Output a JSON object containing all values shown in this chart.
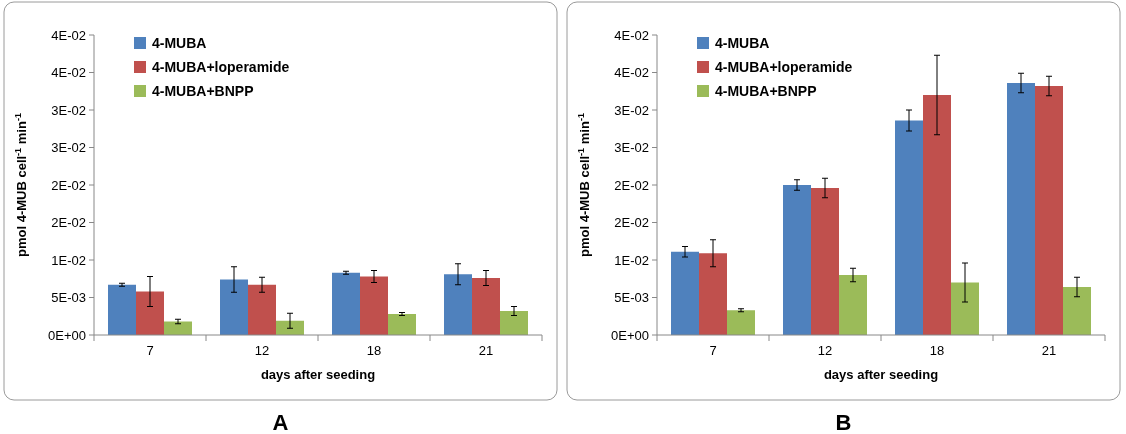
{
  "chart_data": [
    {
      "type": "bar",
      "title": "A",
      "xlabel": "days after seeding",
      "ylabel": "pmol 4-MUB cell$^{-1}$ min$^{-1}$",
      "categories": [
        "7",
        "12",
        "18",
        "21"
      ],
      "legend": "top left",
      "ylim": [
        0,
        0.04
      ],
      "yticks": [
        {
          "value": 0,
          "label": "0E+00"
        },
        {
          "value": 0.005,
          "label": "5E-03"
        },
        {
          "value": 0.01,
          "label": "1E-02"
        },
        {
          "value": 0.015,
          "label": "2E-02"
        },
        {
          "value": 0.02,
          "label": "2E-02"
        },
        {
          "value": 0.025,
          "label": "3E-02"
        },
        {
          "value": 0.03,
          "label": "3E-02"
        },
        {
          "value": 0.035,
          "label": "4E-02"
        },
        {
          "value": 0.04,
          "label": "4E-02"
        }
      ],
      "series": [
        {
          "name": "4-MUBA",
          "color": "#4f81bd",
          "values": [
            0.0067,
            0.0074,
            0.0083,
            0.0081
          ],
          "errors": [
            0.0002,
            0.0017,
            0.0002,
            0.0014
          ]
        },
        {
          "name": "4-MUBA+loperamide",
          "color": "#c0504d",
          "values": [
            0.0058,
            0.0067,
            0.0078,
            0.0076
          ],
          "errors": [
            0.002,
            0.001,
            0.0008,
            0.001
          ]
        },
        {
          "name": "4-MUBA+BNPP",
          "color": "#9bbb59",
          "values": [
            0.0018,
            0.0019,
            0.0028,
            0.0032
          ],
          "errors": [
            0.0003,
            0.001,
            0.0002,
            0.0006
          ]
        }
      ]
    },
    {
      "type": "bar",
      "title": "B",
      "xlabel": "days after seeding",
      "ylabel": "pmol 4-MUB cell$^{-1}$ min$^{-1}$",
      "categories": [
        "7",
        "12",
        "18",
        "21"
      ],
      "legend": "top left",
      "ylim": [
        0,
        0.04
      ],
      "yticks": [
        {
          "value": 0,
          "label": "0E+00"
        },
        {
          "value": 0.005,
          "label": "5E-03"
        },
        {
          "value": 0.01,
          "label": "1E-02"
        },
        {
          "value": 0.015,
          "label": "2E-02"
        },
        {
          "value": 0.02,
          "label": "2E-02"
        },
        {
          "value": 0.025,
          "label": "3E-02"
        },
        {
          "value": 0.03,
          "label": "3E-02"
        },
        {
          "value": 0.035,
          "label": "4E-02"
        },
        {
          "value": 0.04,
          "label": "4E-02"
        }
      ],
      "series": [
        {
          "name": "4-MUBA",
          "color": "#4f81bd",
          "values": [
            0.0111,
            0.02,
            0.0286,
            0.0336
          ],
          "errors": [
            0.0007,
            0.0007,
            0.0014,
            0.0013
          ]
        },
        {
          "name": "4-MUBA+loperamide",
          "color": "#c0504d",
          "values": [
            0.0109,
            0.0196,
            0.032,
            0.0332
          ],
          "errors": [
            0.0018,
            0.0013,
            0.0053,
            0.0013
          ]
        },
        {
          "name": "4-MUBA+BNPP",
          "color": "#9bbb59",
          "values": [
            0.0033,
            0.008,
            0.007,
            0.0064
          ],
          "errors": [
            0.0002,
            0.0009,
            0.0026,
            0.0013
          ]
        }
      ]
    }
  ]
}
